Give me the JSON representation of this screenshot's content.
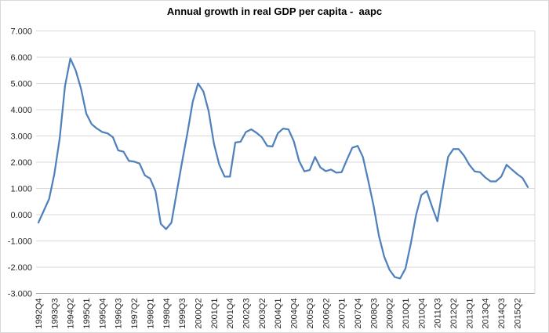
{
  "chart": {
    "title": "Annual growth in real GDP per capita -  aapc"
  },
  "chart_data": {
    "type": "line",
    "title": "Annual growth in real GDP per capita -  aapc",
    "xlabel": "",
    "ylabel": "",
    "legend": "none",
    "grid": "horizontal",
    "ylim": [
      -3,
      7
    ],
    "y_tick_step": 1,
    "y_tick_labels": [
      "7.000",
      "6.000",
      "5.000",
      "4.000",
      "3.000",
      "2.000",
      "1.000",
      "0.000",
      "-1.000",
      "-2.000",
      "-3.000"
    ],
    "x_tick_interval": 3,
    "x_tick_labels": [
      "1992Q4",
      "1993Q3",
      "1994Q2",
      "1995Q1",
      "1995Q4",
      "1996Q3",
      "1997Q2",
      "1998Q1",
      "1998Q4",
      "1999Q3",
      "2000Q2",
      "2001Q1",
      "2001Q4",
      "2002Q3",
      "2003Q2",
      "2004Q1",
      "2004Q4",
      "2005Q3",
      "2006Q2",
      "2007Q1",
      "2007Q4",
      "2008Q3",
      "2009Q2",
      "2010Q1",
      "2010Q4",
      "2011Q3",
      "2012Q2",
      "2013Q1",
      "2013Q4",
      "2014Q3",
      "2015Q2"
    ],
    "series_name": "aapc",
    "series_color": "#4F81BD",
    "line_width": 2.25,
    "gridline_color": "#D9D9D9",
    "axis_line_color": "#A6A6A6",
    "label_color": "#262626",
    "background": "#FFFFFF",
    "categories": [
      "1992Q4",
      "1993Q1",
      "1993Q2",
      "1993Q3",
      "1993Q4",
      "1994Q1",
      "1994Q2",
      "1994Q3",
      "1994Q4",
      "1995Q1",
      "1995Q2",
      "1995Q3",
      "1995Q4",
      "1996Q1",
      "1996Q2",
      "1996Q3",
      "1996Q4",
      "1997Q1",
      "1997Q2",
      "1997Q3",
      "1997Q4",
      "1998Q1",
      "1998Q2",
      "1998Q3",
      "1998Q4",
      "1999Q1",
      "1999Q2",
      "1999Q3",
      "1999Q4",
      "2000Q1",
      "2000Q2",
      "2000Q3",
      "2000Q4",
      "2001Q1",
      "2001Q2",
      "2001Q3",
      "2001Q4",
      "2002Q1",
      "2002Q2",
      "2002Q3",
      "2002Q4",
      "2003Q1",
      "2003Q2",
      "2003Q3",
      "2003Q4",
      "2004Q1",
      "2004Q2",
      "2004Q3",
      "2004Q4",
      "2005Q1",
      "2005Q2",
      "2005Q3",
      "2005Q4",
      "2006Q1",
      "2006Q2",
      "2006Q3",
      "2006Q4",
      "2007Q1",
      "2007Q2",
      "2007Q3",
      "2007Q4",
      "2008Q1",
      "2008Q2",
      "2008Q3",
      "2008Q4",
      "2009Q1",
      "2009Q2",
      "2009Q3",
      "2009Q4",
      "2010Q1",
      "2010Q2",
      "2010Q3",
      "2010Q4",
      "2011Q1",
      "2011Q2",
      "2011Q3",
      "2011Q4",
      "2012Q1",
      "2012Q2",
      "2012Q3",
      "2012Q4",
      "2013Q1",
      "2013Q2",
      "2013Q3",
      "2013Q4",
      "2014Q1",
      "2014Q2",
      "2014Q3",
      "2014Q4",
      "2015Q1",
      "2015Q2",
      "2015Q3",
      "2015Q4"
    ],
    "values": [
      -0.3,
      0.15,
      0.6,
      1.55,
      2.9,
      4.9,
      5.95,
      5.5,
      4.8,
      3.85,
      3.45,
      3.28,
      3.15,
      3.1,
      2.95,
      2.45,
      2.4,
      2.05,
      2.02,
      1.95,
      1.5,
      1.38,
      0.9,
      -0.35,
      -0.55,
      -0.3,
      0.85,
      2.0,
      3.1,
      4.3,
      5.0,
      4.7,
      3.95,
      2.7,
      1.9,
      1.45,
      1.45,
      2.75,
      2.78,
      3.15,
      3.25,
      3.12,
      2.95,
      2.62,
      2.6,
      3.1,
      3.28,
      3.25,
      2.8,
      2.05,
      1.65,
      1.7,
      2.2,
      1.8,
      1.66,
      1.72,
      1.6,
      1.62,
      2.1,
      2.55,
      2.62,
      2.2,
      1.3,
      0.35,
      -0.8,
      -1.6,
      -2.1,
      -2.38,
      -2.43,
      -2.05,
      -1.1,
      0.0,
      0.75,
      0.9,
      0.3,
      -0.25,
      1.0,
      2.2,
      2.5,
      2.5,
      2.25,
      1.9,
      1.65,
      1.62,
      1.42,
      1.27,
      1.27,
      1.45,
      1.9,
      1.72,
      1.55,
      1.4,
      1.05
    ]
  }
}
